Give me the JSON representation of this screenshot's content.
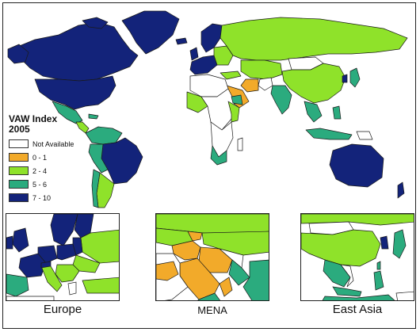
{
  "legend": {
    "title": "VAW Index\n2005",
    "classes": [
      {
        "label": "Not Available",
        "color": "#ffffff"
      },
      {
        "label": "0 - 1",
        "color": "#f2aa2a"
      },
      {
        "label": "2 - 4",
        "color": "#8fe22a"
      },
      {
        "label": "5 - 6",
        "color": "#2bab7e"
      },
      {
        "label": "7 - 10",
        "color": "#13237a"
      }
    ]
  },
  "insets": [
    {
      "label": "Europe"
    },
    {
      "label": "MENA"
    },
    {
      "label": "East Asia"
    }
  ],
  "colors": {
    "border": "#1a1a1a",
    "background": "#ffffff"
  }
}
